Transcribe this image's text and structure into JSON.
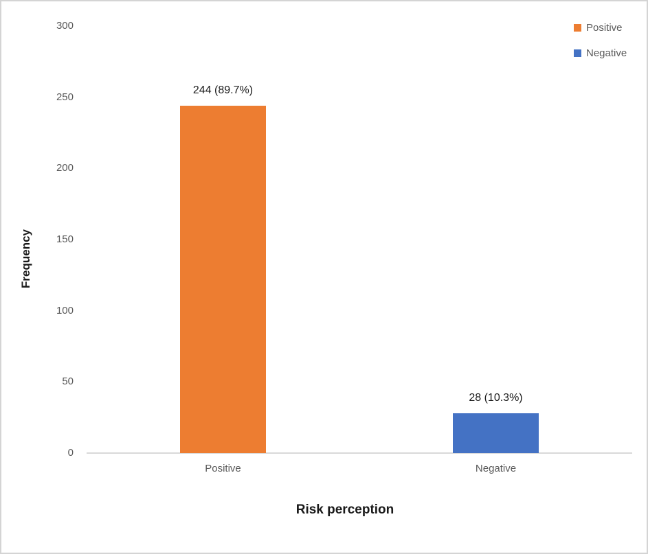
{
  "chart_data": {
    "type": "bar",
    "title": "",
    "categories": [
      "Positive",
      "Negative"
    ],
    "values": [
      244,
      28
    ],
    "bar_labels": [
      "244 (89.7%)",
      "28 (10.3%)"
    ],
    "series_colors": [
      "#ED7D31",
      "#4472C4"
    ],
    "xlabel": "Risk perception",
    "ylabel": "Frequency",
    "ylim": [
      0,
      300
    ],
    "yticks": [
      0,
      50,
      100,
      150,
      200,
      250,
      300
    ],
    "grid": false,
    "legend": {
      "position": "top-right",
      "entries": [
        {
          "label": "Positive",
          "color": "#ED7D31"
        },
        {
          "label": "Negative",
          "color": "#4472C4"
        }
      ]
    }
  },
  "colors": {
    "axis_line": "#D9D9D9",
    "tick_text": "#595959",
    "label_text": "#1A1A1A",
    "frame_border": "#D4D4D4",
    "background": "#FFFFFF"
  }
}
